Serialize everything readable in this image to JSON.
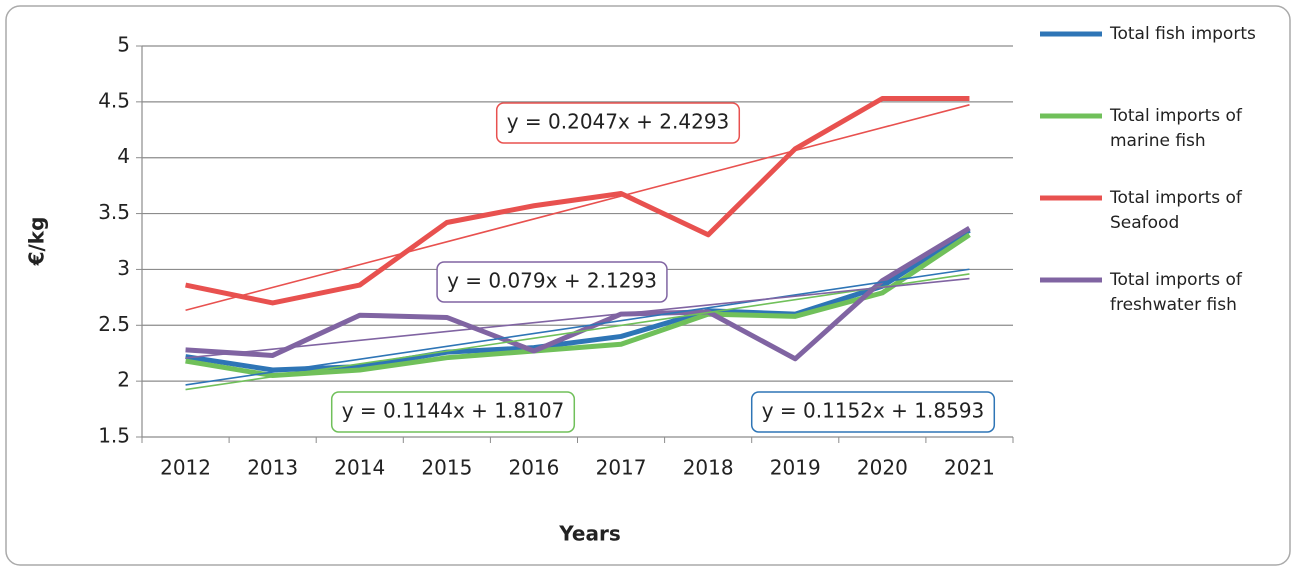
{
  "chart_data": {
    "type": "line",
    "y_label": "€/kg",
    "x_label": "Years",
    "categories": [
      "2012",
      "2013",
      "2014",
      "2015",
      "2016",
      "2017",
      "2018",
      "2019",
      "2020",
      "2021"
    ],
    "series": [
      {
        "name": "Total fish imports",
        "color": "#2e75b6",
        "values": [
          2.22,
          2.1,
          2.13,
          2.26,
          2.3,
          2.4,
          2.63,
          2.6,
          2.85,
          3.35
        ]
      },
      {
        "name": "Total imports of marine fish",
        "color": "#70c05a",
        "values": [
          2.18,
          2.05,
          2.1,
          2.21,
          2.27,
          2.33,
          2.6,
          2.58,
          2.79,
          3.31
        ]
      },
      {
        "name": "Total imports of Seafood",
        "color": "#e8514f",
        "values": [
          2.86,
          2.7,
          2.86,
          3.42,
          3.57,
          3.68,
          3.31,
          4.08,
          4.53,
          4.53
        ]
      },
      {
        "name": "Total imports of freshwater fish",
        "color": "#8064a2",
        "values": [
          2.28,
          2.23,
          2.59,
          2.57,
          2.27,
          2.6,
          2.62,
          2.2,
          2.9,
          3.37
        ]
      }
    ],
    "trendline": true,
    "annotations": [
      {
        "text": "y = 0.2047x + 2.4293",
        "color": "#e8514f"
      },
      {
        "text": "y = 0.079x + 2.1293",
        "color": "#8064a2"
      },
      {
        "text": "y = 0.1144x + 1.8107",
        "color": "#70c05a"
      },
      {
        "text": "y = 0.1152x + 1.8593",
        "color": "#2e75b6"
      }
    ],
    "ylim": [
      1.5,
      5
    ],
    "yticks": [
      1.5,
      2,
      2.5,
      3,
      3.5,
      4,
      4.5,
      5
    ],
    "grid": true,
    "legend": "right"
  }
}
